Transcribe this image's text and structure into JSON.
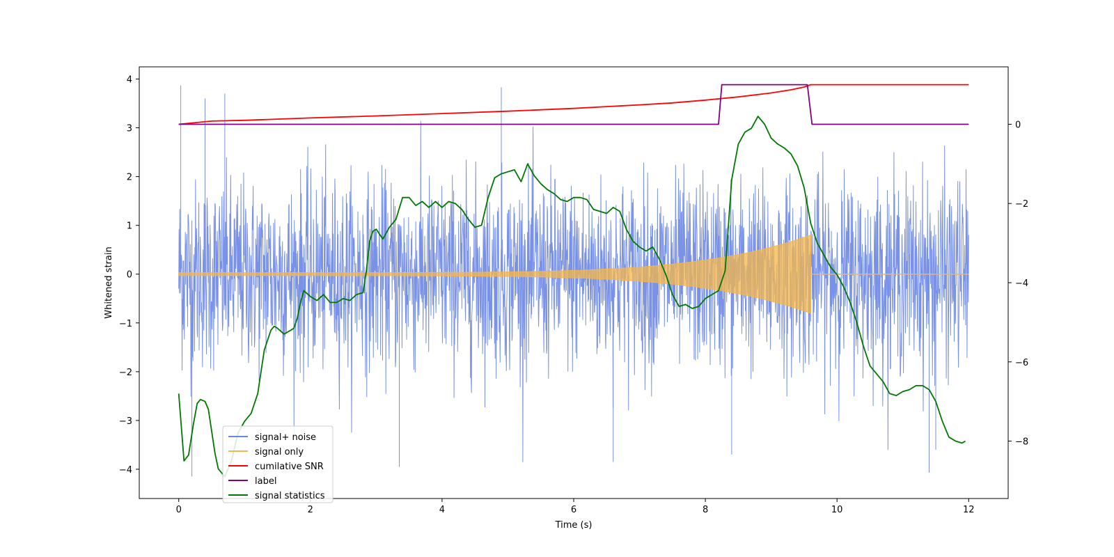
{
  "chart_data": {
    "type": "line",
    "title": "",
    "xlabel": "Time (s)",
    "ylabel": "Whitened strain",
    "ylabel_right": "",
    "xlim": [
      -0.6,
      12.6
    ],
    "ylim": [
      -4.6,
      4.25
    ],
    "ylim_right": [
      -9.45,
      1.45
    ],
    "x_ticks": [
      0,
      2,
      4,
      6,
      8,
      10,
      12
    ],
    "x_tick_labels": [
      "0",
      "2",
      "4",
      "6",
      "8",
      "10",
      "12"
    ],
    "y_ticks": [
      4,
      3,
      2,
      1,
      0,
      -1,
      -2,
      -3,
      -4
    ],
    "y_tick_labels": [
      "4",
      "3",
      "2",
      "1",
      "0",
      "−1",
      "−2",
      "−3",
      "−4"
    ],
    "y_right_ticks": [
      0,
      -2,
      -4,
      -6,
      -8
    ],
    "y_right_tick_labels": [
      "0",
      "−2",
      "−4",
      "−6",
      "−8"
    ],
    "grid": false,
    "legend_position": "lower-left",
    "colors": {
      "noise": "#6a86e4",
      "signal": "#f5b54a",
      "snr": "#ff0000",
      "label": "#800080",
      "stats": "#007800"
    },
    "series": [
      {
        "name": "signal+ noise",
        "axis": "left",
        "x_range": [
          0,
          12
        ],
        "samples": 2400,
        "envelope_typical": [
          -2.3,
          2.3
        ],
        "y_max": 3.87,
        "y_min": -4.15,
        "peak_points": [
          [
            0.03,
            3.87
          ],
          [
            0.4,
            3.6
          ],
          [
            0.7,
            3.7
          ],
          [
            4.9,
            3.83
          ],
          [
            11.4,
            -4.07
          ],
          [
            6.6,
            -3.85
          ],
          [
            0.2,
            -4.15
          ],
          [
            3.35,
            -3.95
          ],
          [
            8.4,
            -3.7
          ],
          [
            11.5,
            -3.6
          ]
        ]
      },
      {
        "name": "signal only",
        "axis": "left",
        "x_range": [
          0,
          9.6
        ],
        "amplitude_start": 0.03,
        "amplitude_end": 0.8,
        "merger_time": 9.6
      },
      {
        "name": "cumilative SNR",
        "axis": "right",
        "x": [
          0,
          0.5,
          1,
          2,
          3,
          4,
          5,
          6,
          7,
          7.5,
          8,
          8.5,
          9,
          9.3,
          9.5,
          9.6,
          10,
          11,
          12
        ],
        "y": [
          0.0,
          0.08,
          0.1,
          0.16,
          0.21,
          0.27,
          0.33,
          0.4,
          0.49,
          0.54,
          0.61,
          0.69,
          0.79,
          0.87,
          0.94,
          1.0,
          1.0,
          1.0,
          1.0
        ]
      },
      {
        "name": "label",
        "axis": "right",
        "x": [
          0,
          8.2,
          8.25,
          9.55,
          9.62,
          12
        ],
        "y": [
          0,
          0,
          1,
          1,
          0,
          0
        ]
      },
      {
        "name": "signal statistics",
        "axis": "right",
        "x": [
          0.0,
          0.08,
          0.15,
          0.22,
          0.28,
          0.33,
          0.4,
          0.45,
          0.55,
          0.6,
          0.7,
          0.8,
          0.9,
          1.0,
          1.1,
          1.2,
          1.3,
          1.4,
          1.45,
          1.5,
          1.6,
          1.7,
          1.75,
          1.8,
          1.85,
          1.9,
          2.0,
          2.1,
          2.2,
          2.3,
          2.4,
          2.5,
          2.6,
          2.7,
          2.8,
          2.85,
          2.9,
          2.95,
          3.0,
          3.1,
          3.2,
          3.3,
          3.4,
          3.45,
          3.5,
          3.6,
          3.7,
          3.8,
          3.9,
          4.0,
          4.1,
          4.2,
          4.3,
          4.4,
          4.5,
          4.6,
          4.7,
          4.8,
          4.9,
          5.0,
          5.1,
          5.2,
          5.3,
          5.4,
          5.5,
          5.6,
          5.7,
          5.8,
          5.9,
          6.0,
          6.1,
          6.2,
          6.3,
          6.4,
          6.5,
          6.6,
          6.7,
          6.8,
          6.9,
          7.0,
          7.1,
          7.2,
          7.3,
          7.4,
          7.5,
          7.6,
          7.7,
          7.8,
          7.9,
          8.0,
          8.1,
          8.2,
          8.3,
          8.4,
          8.5,
          8.6,
          8.7,
          8.8,
          8.9,
          9.0,
          9.1,
          9.2,
          9.3,
          9.4,
          9.5,
          9.6,
          9.7,
          9.8,
          9.9,
          10.0,
          10.1,
          10.2,
          10.3,
          10.4,
          10.5,
          10.6,
          10.7,
          10.8,
          10.9,
          11.0,
          11.1,
          11.2,
          11.3,
          11.4,
          11.5,
          11.6,
          11.7,
          11.8,
          11.9,
          11.95
        ],
        "y": [
          -6.8,
          -8.5,
          -8.35,
          -7.6,
          -7.05,
          -6.95,
          -7.0,
          -7.2,
          -8.3,
          -8.7,
          -8.9,
          -8.5,
          -7.8,
          -7.5,
          -7.3,
          -6.8,
          -5.7,
          -5.2,
          -5.1,
          -5.15,
          -5.3,
          -5.2,
          -5.15,
          -4.9,
          -4.5,
          -4.2,
          -4.35,
          -4.45,
          -4.3,
          -4.5,
          -4.5,
          -4.4,
          -4.45,
          -4.3,
          -4.25,
          -3.7,
          -2.95,
          -2.7,
          -2.65,
          -2.9,
          -2.6,
          -2.4,
          -1.85,
          -1.85,
          -1.85,
          -2.05,
          -1.95,
          -2.1,
          -1.95,
          -2.1,
          -1.95,
          -2.0,
          -2.15,
          -2.4,
          -2.6,
          -2.55,
          -1.85,
          -1.35,
          -1.25,
          -1.2,
          -1.15,
          -1.45,
          -1.0,
          -1.3,
          -1.5,
          -1.65,
          -1.75,
          -1.9,
          -1.95,
          -1.85,
          -1.85,
          -1.9,
          -2.15,
          -2.2,
          -2.25,
          -2.1,
          -2.2,
          -2.65,
          -2.95,
          -3.1,
          -3.2,
          -3.1,
          -3.4,
          -3.8,
          -4.3,
          -4.6,
          -4.55,
          -4.65,
          -4.6,
          -4.4,
          -4.3,
          -4.2,
          -3.7,
          -1.4,
          -0.5,
          -0.2,
          -0.1,
          0.2,
          0.0,
          -0.35,
          -0.5,
          -0.6,
          -0.75,
          -1.05,
          -1.6,
          -2.5,
          -3.0,
          -3.3,
          -3.6,
          -3.8,
          -4.1,
          -4.5,
          -5.0,
          -5.6,
          -6.1,
          -6.3,
          -6.5,
          -6.8,
          -6.85,
          -6.75,
          -6.7,
          -6.6,
          -6.6,
          -6.7,
          -7.0,
          -7.5,
          -7.9,
          -8.0,
          -8.05,
          -8.0
        ]
      }
    ]
  }
}
